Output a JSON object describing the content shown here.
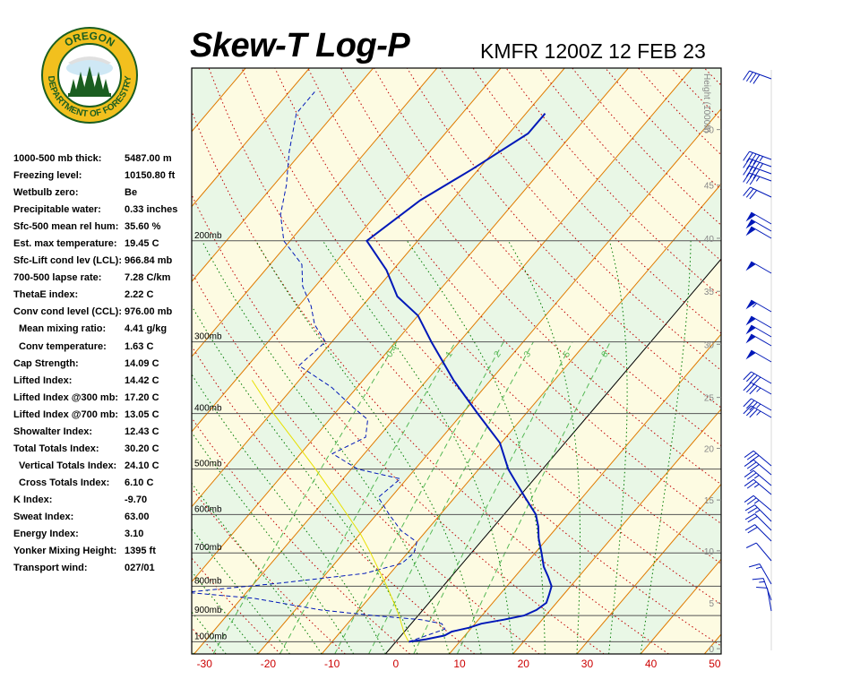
{
  "header": {
    "title": "Skew-T Log-P",
    "station": "KMFR 1200Z 12 FEB 23"
  },
  "logo": {
    "top_text": "OREGON",
    "bottom_text": "DEPARTMENT OF FORESTRY",
    "ring_color": "#f2c01e",
    "ring_text_color": "#1b5e20",
    "inner_color": "#1b5e20"
  },
  "indices": [
    {
      "label": "1000-500 mb thick:",
      "value": "5487.00 m",
      "indent": false
    },
    {
      "label": "Freezing level:",
      "value": "10150.80 ft",
      "indent": false
    },
    {
      "label": "Wetbulb zero:",
      "value": "Be",
      "indent": false
    },
    {
      "label": "Precipitable water:",
      "value": "0.33 inches",
      "indent": false
    },
    {
      "label": "Sfc-500 mean rel hum:",
      "value": "35.60 %",
      "indent": false
    },
    {
      "label": "Est. max temperature:",
      "value": "19.45 C",
      "indent": false
    },
    {
      "label": "Sfc-Lift cond lev (LCL):",
      "value": "966.84 mb",
      "indent": false
    },
    {
      "label": "700-500 lapse rate:",
      "value": "7.28 C/km",
      "indent": false
    },
    {
      "label": "ThetaE index:",
      "value": "2.22 C",
      "indent": false
    },
    {
      "label": "Conv cond level (CCL):",
      "value": "976.00 mb",
      "indent": false
    },
    {
      "label": "Mean mixing ratio:",
      "value": "4.41 g/kg",
      "indent": true
    },
    {
      "label": "Conv temperature:",
      "value": "1.63 C",
      "indent": true
    },
    {
      "label": "Cap Strength:",
      "value": "14.09 C",
      "indent": false
    },
    {
      "label": "Lifted Index:",
      "value": "14.42 C",
      "indent": false
    },
    {
      "label": "Lifted Index @300 mb:",
      "value": "17.20 C",
      "indent": false
    },
    {
      "label": "Lifted Index @700 mb:",
      "value": "13.05 C",
      "indent": false
    },
    {
      "label": "Showalter Index:",
      "value": "12.43 C",
      "indent": false
    },
    {
      "label": "Total Totals Index:",
      "value": "30.20 C",
      "indent": false
    },
    {
      "label": "Vertical Totals Index:",
      "value": "24.10 C",
      "indent": true
    },
    {
      "label": "Cross Totals Index:",
      "value": "6.10 C",
      "indent": true
    },
    {
      "label": "K Index:",
      "value": "-9.70",
      "indent": false
    },
    {
      "label": "Sweat Index:",
      "value": "63.00",
      "indent": false
    },
    {
      "label": "Energy Index:",
      "value": "3.10",
      "indent": false
    },
    {
      "label": "Yonker Mixing Height:",
      "value": "1395 ft",
      "indent": false
    },
    {
      "label": "Transport wind:",
      "value": "027/01",
      "indent": false
    }
  ],
  "chart_data": {
    "type": "line",
    "x_axis": {
      "label": "",
      "ticks": [
        -30,
        -20,
        -10,
        0,
        10,
        20,
        30,
        40,
        50
      ],
      "range": [
        -32,
        51
      ],
      "units": "C",
      "tick_color": "#cc0000"
    },
    "y_axis": {
      "scale": "log",
      "range_mb": [
        1050,
        100
      ]
    },
    "pressure_levels": [
      {
        "p": 1000,
        "label": "1000mb"
      },
      {
        "p": 900,
        "label": "900mb"
      },
      {
        "p": 800,
        "label": "800mb"
      },
      {
        "p": 700,
        "label": "700mb"
      },
      {
        "p": 600,
        "label": "600mb"
      },
      {
        "p": 500,
        "label": "500mb"
      },
      {
        "p": 400,
        "label": "400mb"
      },
      {
        "p": 300,
        "label": "300mb"
      },
      {
        "p": 200,
        "label": "200mb"
      }
    ],
    "height_axis": {
      "title": "Height (1000ft)",
      "ticks": [
        {
          "kft": 0,
          "p": 1028
        },
        {
          "kft": 5,
          "p": 855
        },
        {
          "kft": 10,
          "p": 694
        },
        {
          "kft": 15,
          "p": 566
        },
        {
          "kft": 20,
          "p": 460
        },
        {
          "kft": 25,
          "p": 375
        },
        {
          "kft": 30,
          "p": 303
        },
        {
          "kft": 35,
          "p": 245
        },
        {
          "kft": 40,
          "p": 198
        },
        {
          "kft": 45,
          "p": 160
        },
        {
          "kft": 50,
          "p": 128
        }
      ]
    },
    "mixing_ratio_labels": [
      "0.4",
      "1",
      "2",
      "3",
      "5",
      "8"
    ],
    "series": [
      {
        "name": "",
        "kind": "temperature",
        "color": "#0018b8",
        "points": [
          [
            1000,
            2.0
          ],
          [
            990,
            4.4
          ],
          [
            975,
            6.8
          ],
          [
            960,
            7.4
          ],
          [
            945,
            9.6
          ],
          [
            930,
            11.0
          ],
          [
            915,
            14.0
          ],
          [
            900,
            16.6
          ],
          [
            880,
            17.8
          ],
          [
            855,
            18.4
          ],
          [
            830,
            17.8
          ],
          [
            800,
            17.0
          ],
          [
            770,
            15.2
          ],
          [
            740,
            13.2
          ],
          [
            700,
            11.0
          ],
          [
            660,
            8.6
          ],
          [
            630,
            7.0
          ],
          [
            600,
            5.0
          ],
          [
            560,
            1.0
          ],
          [
            520,
            -3.2
          ],
          [
            500,
            -5.4
          ],
          [
            450,
            -10.2
          ],
          [
            400,
            -17.6
          ],
          [
            350,
            -25.8
          ],
          [
            300,
            -34.4
          ],
          [
            270,
            -40.0
          ],
          [
            250,
            -45.8
          ],
          [
            225,
            -51.0
          ],
          [
            200,
            -58.0
          ],
          [
            170,
            -55.0
          ],
          [
            150,
            -51.0
          ],
          [
            130,
            -47.0
          ],
          [
            120,
            -47.0
          ]
        ]
      },
      {
        "name": "",
        "kind": "dewpoint",
        "color": "#0018b8",
        "points": [
          [
            1000,
            2.0
          ],
          [
            975,
            4.0
          ],
          [
            950,
            6.0
          ],
          [
            930,
            4.8
          ],
          [
            915,
            1.0
          ],
          [
            900,
            -7.0
          ],
          [
            880,
            -16.0
          ],
          [
            840,
            -28.0
          ],
          [
            820,
            -39.5
          ],
          [
            790,
            -26.0
          ],
          [
            760,
            -14.0
          ],
          [
            730,
            -9.5
          ],
          [
            700,
            -9.0
          ],
          [
            670,
            -10.0
          ],
          [
            640,
            -14.0
          ],
          [
            600,
            -18.0
          ],
          [
            560,
            -22.0
          ],
          [
            520,
            -21.0
          ],
          [
            500,
            -29.0
          ],
          [
            470,
            -35.0
          ],
          [
            440,
            -32.0
          ],
          [
            410,
            -34.0
          ],
          [
            390,
            -38.0
          ],
          [
            360,
            -44.0
          ],
          [
            330,
            -52.0
          ],
          [
            300,
            -51.0
          ],
          [
            280,
            -55.0
          ],
          [
            260,
            -58.0
          ],
          [
            240,
            -62.0
          ],
          [
            220,
            -65.0
          ],
          [
            200,
            -71.0
          ],
          [
            180,
            -75.0
          ],
          [
            160,
            -78.0
          ],
          [
            140,
            -82.0
          ],
          [
            120,
            -86.0
          ],
          [
            110,
            -86.0
          ]
        ]
      },
      {
        "name": "",
        "kind": "parcel",
        "color": "#e8e000",
        "points": [
          [
            1000,
            2.0
          ],
          [
            966.84,
            0.2
          ],
          [
            900,
            -3.0
          ],
          [
            850,
            -5.8
          ],
          [
            800,
            -8.8
          ],
          [
            750,
            -12.2
          ],
          [
            700,
            -15.8
          ],
          [
            650,
            -19.8
          ],
          [
            600,
            -24.6
          ],
          [
            550,
            -29.8
          ],
          [
            500,
            -35.6
          ],
          [
            450,
            -42.2
          ],
          [
            400,
            -49.6
          ],
          [
            350,
            -57.4
          ]
        ]
      }
    ],
    "wind_barbs": [
      {
        "y": 88,
        "dir": 290,
        "spd": 40
      },
      {
        "y": 178,
        "dir": 290,
        "spd": 45
      },
      {
        "y": 186,
        "dir": 290,
        "spd": 45
      },
      {
        "y": 194,
        "dir": 290,
        "spd": 40
      },
      {
        "y": 202,
        "dir": 290,
        "spd": 35
      },
      {
        "y": 220,
        "dir": 295,
        "spd": 30
      },
      {
        "y": 250,
        "dir": 300,
        "spd": 50
      },
      {
        "y": 258,
        "dir": 300,
        "spd": 50
      },
      {
        "y": 266,
        "dir": 300,
        "spd": 50
      },
      {
        "y": 305,
        "dir": 300,
        "spd": 50
      },
      {
        "y": 348,
        "dir": 300,
        "spd": 55
      },
      {
        "y": 366,
        "dir": 300,
        "spd": 50
      },
      {
        "y": 376,
        "dir": 300,
        "spd": 50
      },
      {
        "y": 386,
        "dir": 300,
        "spd": 50
      },
      {
        "y": 404,
        "dir": 300,
        "spd": 50
      },
      {
        "y": 428,
        "dir": 300,
        "spd": 40
      },
      {
        "y": 440,
        "dir": 300,
        "spd": 35
      },
      {
        "y": 458,
        "dir": 300,
        "spd": 35
      },
      {
        "y": 466,
        "dir": 300,
        "spd": 35
      },
      {
        "y": 520,
        "dir": 310,
        "spd": 30
      },
      {
        "y": 530,
        "dir": 310,
        "spd": 30
      },
      {
        "y": 542,
        "dir": 310,
        "spd": 25
      },
      {
        "y": 552,
        "dir": 310,
        "spd": 25
      },
      {
        "y": 570,
        "dir": 310,
        "spd": 25
      },
      {
        "y": 582,
        "dir": 315,
        "spd": 25
      },
      {
        "y": 592,
        "dir": 315,
        "spd": 20
      },
      {
        "y": 604,
        "dir": 315,
        "spd": 20
      },
      {
        "y": 626,
        "dir": 320,
        "spd": 10
      },
      {
        "y": 652,
        "dir": 330,
        "spd": 15
      },
      {
        "y": 670,
        "dir": 340,
        "spd": 15
      },
      {
        "y": 682,
        "dir": 350,
        "spd": 10
      }
    ]
  }
}
